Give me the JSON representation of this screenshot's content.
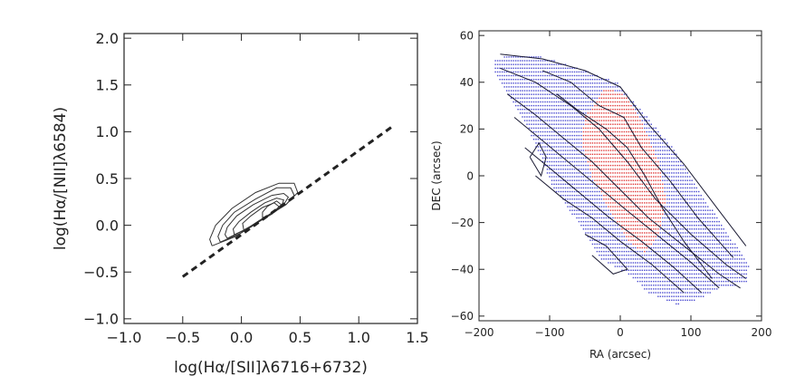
{
  "chart_data": [
    {
      "type": "scatter",
      "title": "",
      "xlabel": "log(Hα/[SII]λ6716+6732)",
      "ylabel": "log(Hα/[NII]λ6584)",
      "xlim": [
        -1.0,
        1.5
      ],
      "ylim": [
        -1.05,
        2.05
      ],
      "xticks": [
        "−1.0",
        "−0.5",
        "0.0",
        "0.5",
        "1.0",
        "1.5"
      ],
      "xtick_values": [
        -1.0,
        -0.5,
        0.0,
        0.5,
        1.0,
        1.5
      ],
      "yticks": [
        "−1.0",
        "−0.5",
        "0.0",
        "0.5",
        "1.0",
        "1.5",
        "2.0"
      ],
      "ytick_values": [
        -1.0,
        -0.5,
        0.0,
        0.5,
        1.0,
        1.5,
        2.0
      ],
      "grid": false,
      "reference_line": {
        "style": "dashed",
        "x": [
          -0.5,
          1.28
        ],
        "y": [
          -0.55,
          1.05
        ]
      },
      "density_contours": [
        [
          [
            -0.25,
            -0.22
          ],
          [
            -0.05,
            -0.12
          ],
          [
            0.15,
            0.05
          ],
          [
            0.38,
            0.22
          ],
          [
            0.48,
            0.35
          ],
          [
            0.45,
            0.45
          ],
          [
            0.32,
            0.45
          ],
          [
            0.12,
            0.35
          ],
          [
            -0.08,
            0.18
          ],
          [
            -0.22,
            0.0
          ],
          [
            -0.27,
            -0.15
          ],
          [
            -0.25,
            -0.22
          ]
        ],
        [
          [
            -0.18,
            -0.18
          ],
          [
            0.0,
            -0.08
          ],
          [
            0.2,
            0.08
          ],
          [
            0.38,
            0.22
          ],
          [
            0.45,
            0.32
          ],
          [
            0.42,
            0.4
          ],
          [
            0.3,
            0.4
          ],
          [
            0.12,
            0.28
          ],
          [
            -0.06,
            0.14
          ],
          [
            -0.16,
            0.0
          ],
          [
            -0.2,
            -0.12
          ],
          [
            -0.18,
            -0.18
          ]
        ],
        [
          [
            -0.12,
            -0.14
          ],
          [
            0.04,
            -0.04
          ],
          [
            0.22,
            0.1
          ],
          [
            0.36,
            0.22
          ],
          [
            0.4,
            0.3
          ],
          [
            0.36,
            0.34
          ],
          [
            0.26,
            0.32
          ],
          [
            0.1,
            0.22
          ],
          [
            -0.04,
            0.1
          ],
          [
            -0.12,
            -0.02
          ],
          [
            -0.14,
            -0.1
          ],
          [
            -0.12,
            -0.14
          ]
        ],
        [
          [
            -0.06,
            -0.1
          ],
          [
            0.08,
            -0.02
          ],
          [
            0.22,
            0.1
          ],
          [
            0.34,
            0.2
          ],
          [
            0.36,
            0.27
          ],
          [
            0.3,
            0.29
          ],
          [
            0.2,
            0.24
          ],
          [
            0.08,
            0.14
          ],
          [
            -0.02,
            0.04
          ],
          [
            -0.07,
            -0.04
          ],
          [
            -0.06,
            -0.1
          ]
        ],
        [
          [
            0.02,
            -0.05
          ],
          [
            0.14,
            0.03
          ],
          [
            0.26,
            0.12
          ],
          [
            0.32,
            0.2
          ],
          [
            0.28,
            0.24
          ],
          [
            0.18,
            0.19
          ],
          [
            0.08,
            0.1
          ],
          [
            0.01,
            0.02
          ],
          [
            0.02,
            -0.05
          ]
        ],
        [
          [
            0.18,
            0.08
          ],
          [
            0.28,
            0.14
          ],
          [
            0.34,
            0.22
          ],
          [
            0.3,
            0.26
          ],
          [
            0.22,
            0.2
          ],
          [
            0.18,
            0.14
          ],
          [
            0.18,
            0.08
          ]
        ]
      ]
    },
    {
      "type": "scatter",
      "title": "",
      "xlabel": "RA (arcsec)",
      "ylabel": "DEC (arcsec)",
      "xlim": [
        -200,
        200
      ],
      "ylim": [
        -62,
        62
      ],
      "xticks": [
        "−200",
        "−100",
        "0",
        "100",
        "200"
      ],
      "xtick_values": [
        -200,
        -100,
        0,
        100,
        200
      ],
      "yticks": [
        "−60",
        "−40",
        "−20",
        "0",
        "20",
        "40",
        "60"
      ],
      "ytick_values": [
        -60,
        -40,
        -20,
        0,
        20,
        40,
        60
      ],
      "grid": false,
      "colors": {
        "blue_points": "#4a4ad0",
        "red_points": "#e03a3a",
        "contours": "#1a1a33"
      },
      "region_polygon": [
        [
          -178,
          50
        ],
        [
          -150,
          52
        ],
        [
          -112,
          51
        ],
        [
          -60,
          46
        ],
        [
          -5,
          40
        ],
        [
          30,
          28
        ],
        [
          80,
          10
        ],
        [
          120,
          -10
        ],
        [
          160,
          -28
        ],
        [
          182,
          -38
        ],
        [
          180,
          -46
        ],
        [
          140,
          -48
        ],
        [
          110,
          -53
        ],
        [
          80,
          -55
        ],
        [
          40,
          -50
        ],
        [
          10,
          -42
        ],
        [
          -30,
          -35
        ],
        [
          -60,
          -20
        ],
        [
          -95,
          -5
        ],
        [
          -130,
          20
        ],
        [
          -165,
          38
        ],
        [
          -178,
          45
        ]
      ],
      "red_region_polygon": [
        [
          -50,
          25
        ],
        [
          -20,
          38
        ],
        [
          10,
          34
        ],
        [
          35,
          20
        ],
        [
          55,
          5
        ],
        [
          65,
          -10
        ],
        [
          55,
          -25
        ],
        [
          35,
          -33
        ],
        [
          10,
          -28
        ],
        [
          -15,
          -15
        ],
        [
          -40,
          0
        ],
        [
          -55,
          15
        ]
      ],
      "contours": [
        [
          [
            -170,
            46
          ],
          [
            -120,
            40
          ],
          [
            -70,
            30
          ],
          [
            -30,
            20
          ],
          [
            10,
            6
          ],
          [
            50,
            -10
          ],
          [
            100,
            -25
          ],
          [
            150,
            -38
          ],
          [
            178,
            -44
          ]
        ],
        [
          [
            -160,
            35
          ],
          [
            -120,
            26
          ],
          [
            -80,
            16
          ],
          [
            -40,
            6
          ],
          [
            0,
            -6
          ],
          [
            40,
            -18
          ],
          [
            90,
            -30
          ],
          [
            140,
            -42
          ],
          [
            170,
            -48
          ]
        ],
        [
          [
            -150,
            25
          ],
          [
            -110,
            15
          ],
          [
            -70,
            5
          ],
          [
            -30,
            -5
          ],
          [
            10,
            -15
          ],
          [
            55,
            -26
          ],
          [
            100,
            -37
          ],
          [
            140,
            -48
          ]
        ],
        [
          [
            -135,
            12
          ],
          [
            -95,
            2
          ],
          [
            -55,
            -8
          ],
          [
            -15,
            -18
          ],
          [
            30,
            -28
          ],
          [
            75,
            -39
          ],
          [
            115,
            -50
          ]
        ],
        [
          [
            -120,
            0
          ],
          [
            -80,
            -10
          ],
          [
            -40,
            -18
          ],
          [
            0,
            -28
          ],
          [
            45,
            -38
          ],
          [
            90,
            -50
          ]
        ],
        [
          [
            -170,
            52
          ],
          [
            -110,
            50
          ],
          [
            -50,
            45
          ],
          [
            0,
            38
          ],
          [
            40,
            22
          ],
          [
            90,
            5
          ],
          [
            140,
            -15
          ],
          [
            178,
            -30
          ]
        ],
        [
          [
            -110,
            45
          ],
          [
            -70,
            40
          ],
          [
            -30,
            30
          ],
          [
            5,
            25
          ],
          [
            30,
            12
          ],
          [
            70,
            -2
          ],
          [
            110,
            -18
          ],
          [
            160,
            -35
          ]
        ],
        [
          [
            -90,
            35
          ],
          [
            -60,
            28
          ],
          [
            -20,
            20
          ],
          [
            10,
            12
          ],
          [
            35,
            0
          ],
          [
            60,
            -14
          ],
          [
            90,
            -28
          ],
          [
            130,
            -44
          ]
        ],
        [
          [
            -128,
            8
          ],
          [
            -115,
            14
          ],
          [
            -105,
            8
          ],
          [
            -112,
            0
          ],
          [
            -128,
            8
          ]
        ],
        [
          [
            -50,
            -25
          ],
          [
            -20,
            -30
          ],
          [
            10,
            -40
          ],
          [
            -10,
            -42
          ],
          [
            -40,
            -34
          ]
        ]
      ]
    }
  ]
}
